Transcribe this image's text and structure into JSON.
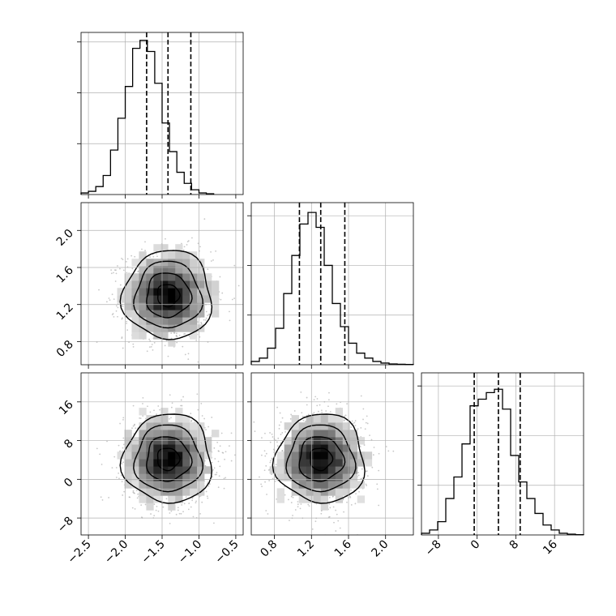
{
  "chart_data": {
    "type": "corner",
    "parameters": 3,
    "grid": true,
    "quantile_lines": "dashed",
    "colors": {
      "line": "#000000",
      "grid": "#b0b0b0",
      "samples": "#9a9a9a",
      "density_dark": "#000000",
      "density_light": "#ffffff"
    },
    "axes": {
      "p0": {
        "lim": [
          -2.6,
          -0.4
        ],
        "ticks": [
          -2.5,
          -2.0,
          -1.5,
          -1.0,
          -0.5
        ],
        "tick_labels": [
          "−2.5",
          "−2.0",
          "−1.5",
          "−1.0",
          "−0.5"
        ]
      },
      "p1": {
        "lim": [
          0.55,
          2.3
        ],
        "ticks": [
          0.8,
          1.2,
          1.6,
          2.0
        ],
        "tick_labels": [
          "0.8",
          "1.2",
          "1.6",
          "2.0"
        ]
      },
      "p2": {
        "lim": [
          -11.5,
          22
        ],
        "ticks": [
          -8,
          0,
          8,
          16
        ],
        "tick_labels": [
          "−8",
          "0",
          "8",
          "16"
        ]
      }
    },
    "marginals": [
      {
        "param": "p0",
        "bin_start": -2.6,
        "bin_width": 0.1,
        "counts": [
          1,
          2,
          5,
          12,
          28,
          48,
          68,
          92,
          97,
          90,
          70,
          45,
          27,
          14,
          7,
          3,
          1,
          0.5
        ],
        "max_count": 100,
        "quantiles": {
          "q16": -1.71,
          "q50": -1.42,
          "q84": -1.11
        },
        "y_ticks": [
          32,
          64,
          96
        ]
      },
      {
        "param": "p1",
        "bin_start": 0.55,
        "bin_width": 0.0875,
        "counts": [
          2,
          4,
          10,
          22,
          43,
          66,
          85,
          92,
          83,
          60,
          37,
          23,
          13,
          7,
          4,
          2,
          1,
          0.5,
          0.3,
          0.2
        ],
        "max_count": 96,
        "quantiles": {
          "q16": 1.07,
          "q50": 1.3,
          "q84": 1.56
        },
        "y_ticks": [
          30,
          60,
          90
        ]
      },
      {
        "param": "p2",
        "bin_start": -11.5,
        "bin_width": 1.675,
        "counts": [
          1,
          3,
          8,
          22,
          35,
          55,
          78,
          82,
          86,
          88,
          76,
          48,
          32,
          22,
          13,
          6,
          3,
          1,
          0.5,
          0.2
        ],
        "max_count": 96,
        "quantiles": {
          "q16": -0.6,
          "q50": 4.4,
          "q84": 8.9
        },
        "y_ticks": [
          30,
          60,
          90
        ]
      }
    ],
    "pairs": [
      {
        "x": "p0",
        "y": "p1",
        "mean": [
          -1.42,
          1.3
        ],
        "std": [
          0.3,
          0.24
        ],
        "contour_levels_sigma": [
          0.5,
          1.0,
          1.5,
          2.0
        ]
      },
      {
        "x": "p0",
        "y": "p2",
        "mean": [
          -1.42,
          4.2
        ],
        "std": [
          0.3,
          4.6
        ],
        "contour_levels_sigma": [
          0.5,
          1.0,
          1.5,
          2.0
        ]
      },
      {
        "x": "p1",
        "y": "p2",
        "mean": [
          1.3,
          4.2
        ],
        "std": [
          0.24,
          4.6
        ],
        "contour_levels_sigma": [
          0.5,
          1.0,
          1.5,
          2.0
        ]
      }
    ]
  }
}
